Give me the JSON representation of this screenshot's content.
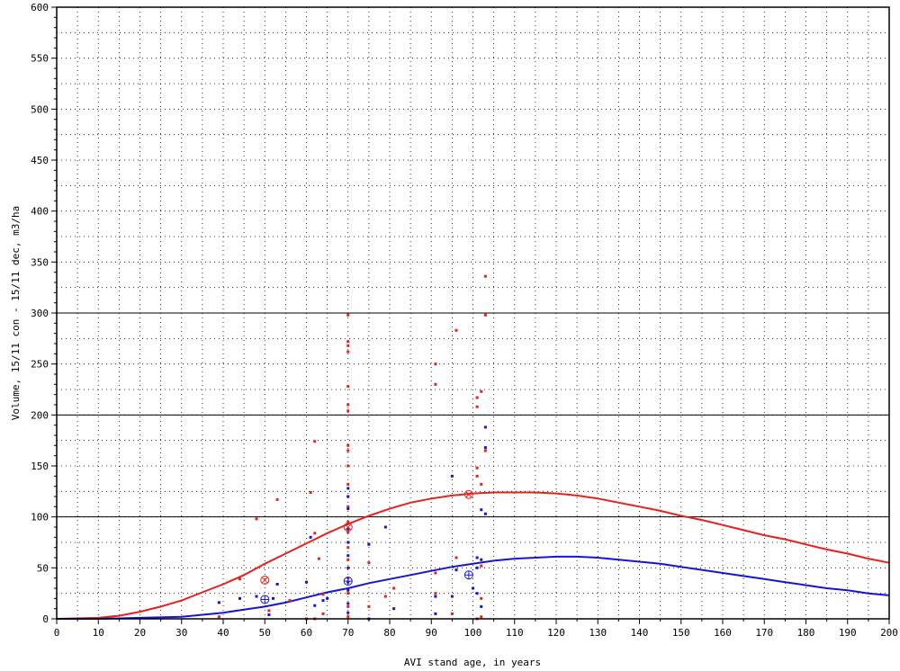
{
  "chart_data": {
    "type": "scatter",
    "title": "",
    "xlabel": "AVI stand age, in years",
    "ylabel": "Volume, 15/11 con - 15/11 dec, m3/ha",
    "xlim": [
      0,
      200
    ],
    "ylim": [
      0,
      600
    ],
    "x_ticks": [
      0,
      10,
      20,
      30,
      40,
      50,
      60,
      70,
      80,
      90,
      100,
      110,
      120,
      130,
      140,
      150,
      160,
      170,
      180,
      190,
      200
    ],
    "y_ticks": [
      0,
      50,
      100,
      150,
      200,
      250,
      300,
      350,
      400,
      450,
      500,
      550,
      600
    ],
    "reference_lines_y": [
      100,
      200,
      300
    ],
    "grid": "dotted",
    "legend": "none",
    "colors": {
      "con": "#e8201e",
      "dec": "#1515d8",
      "axis": "#000000"
    },
    "series": [
      {
        "kind": "points",
        "color": "con",
        "points": [
          [
            39,
            2
          ],
          [
            44,
            39
          ],
          [
            48,
            98
          ],
          [
            51,
            8
          ],
          [
            53,
            117
          ],
          [
            56,
            18
          ],
          [
            60,
            0
          ],
          [
            61,
            124
          ],
          [
            62,
            174
          ],
          [
            62,
            84
          ],
          [
            62,
            0
          ],
          [
            63,
            59
          ],
          [
            64,
            24
          ],
          [
            64,
            5
          ],
          [
            70,
            298
          ],
          [
            70,
            272
          ],
          [
            70,
            268
          ],
          [
            70,
            262
          ],
          [
            70,
            228
          ],
          [
            70,
            210
          ],
          [
            70,
            204
          ],
          [
            70,
            170
          ],
          [
            70,
            165
          ],
          [
            70,
            150
          ],
          [
            70,
            132
          ],
          [
            70,
            110
          ],
          [
            70,
            95
          ],
          [
            70,
            85
          ],
          [
            70,
            70
          ],
          [
            70,
            58
          ],
          [
            70,
            40
          ],
          [
            70,
            25
          ],
          [
            70,
            12
          ],
          [
            70,
            2
          ],
          [
            75,
            55
          ],
          [
            75,
            12
          ],
          [
            79,
            22
          ],
          [
            81,
            30
          ],
          [
            91,
            250
          ],
          [
            91,
            230
          ],
          [
            91,
            45
          ],
          [
            91,
            25
          ],
          [
            96,
            283
          ],
          [
            96,
            60
          ],
          [
            95,
            5
          ],
          [
            101,
            148
          ],
          [
            101,
            140
          ],
          [
            101,
            217
          ],
          [
            101,
            208
          ],
          [
            102,
            223
          ],
          [
            102,
            132
          ],
          [
            102,
            52
          ],
          [
            102,
            20
          ],
          [
            103,
            336
          ],
          [
            103,
            298
          ],
          [
            103,
            165
          ],
          [
            101,
            0
          ],
          [
            102,
            2
          ]
        ]
      },
      {
        "kind": "points",
        "color": "dec",
        "points": [
          [
            39,
            16
          ],
          [
            44,
            20
          ],
          [
            48,
            22
          ],
          [
            51,
            4
          ],
          [
            52,
            20
          ],
          [
            53,
            34
          ],
          [
            60,
            36
          ],
          [
            61,
            80
          ],
          [
            62,
            13
          ],
          [
            64,
            18
          ],
          [
            65,
            20
          ],
          [
            70,
            128
          ],
          [
            70,
            120
          ],
          [
            70,
            108
          ],
          [
            70,
            88
          ],
          [
            70,
            75
          ],
          [
            70,
            62
          ],
          [
            70,
            50
          ],
          [
            70,
            36
          ],
          [
            70,
            28
          ],
          [
            70,
            15
          ],
          [
            70,
            6
          ],
          [
            75,
            73
          ],
          [
            75,
            0
          ],
          [
            79,
            90
          ],
          [
            81,
            10
          ],
          [
            91,
            22
          ],
          [
            91,
            5
          ],
          [
            95,
            140
          ],
          [
            95,
            22
          ],
          [
            96,
            48
          ],
          [
            101,
            60
          ],
          [
            101,
            50
          ],
          [
            102,
            107
          ],
          [
            102,
            58
          ],
          [
            103,
            188
          ],
          [
            103,
            168
          ],
          [
            103,
            103
          ],
          [
            101,
            25
          ],
          [
            102,
            12
          ],
          [
            100,
            30
          ]
        ]
      },
      {
        "kind": "mean-markers",
        "color": "con",
        "marker": "circle-x",
        "points": [
          [
            50,
            38
          ],
          [
            70,
            90
          ],
          [
            99,
            122
          ]
        ]
      },
      {
        "kind": "mean-markers",
        "color": "dec",
        "marker": "circle-plus",
        "points": [
          [
            50,
            19
          ],
          [
            70,
            37
          ],
          [
            99,
            43
          ]
        ]
      },
      {
        "kind": "curve",
        "color": "con",
        "points": [
          [
            0,
            0
          ],
          [
            10,
            1
          ],
          [
            15,
            3
          ],
          [
            20,
            7
          ],
          [
            25,
            12
          ],
          [
            30,
            18
          ],
          [
            35,
            26
          ],
          [
            40,
            34
          ],
          [
            45,
            43
          ],
          [
            50,
            54
          ],
          [
            55,
            64
          ],
          [
            60,
            74
          ],
          [
            65,
            84
          ],
          [
            70,
            93
          ],
          [
            75,
            101
          ],
          [
            80,
            108
          ],
          [
            85,
            114
          ],
          [
            90,
            118
          ],
          [
            95,
            121
          ],
          [
            100,
            123
          ],
          [
            105,
            124
          ],
          [
            110,
            124
          ],
          [
            115,
            124
          ],
          [
            120,
            123
          ],
          [
            125,
            121
          ],
          [
            130,
            118
          ],
          [
            135,
            114
          ],
          [
            140,
            110
          ],
          [
            145,
            106
          ],
          [
            150,
            101
          ],
          [
            155,
            97
          ],
          [
            160,
            92
          ],
          [
            165,
            87
          ],
          [
            170,
            82
          ],
          [
            175,
            78
          ],
          [
            180,
            73
          ],
          [
            185,
            68
          ],
          [
            190,
            64
          ],
          [
            195,
            59
          ],
          [
            200,
            55
          ]
        ]
      },
      {
        "kind": "curve",
        "color": "dec",
        "points": [
          [
            0,
            0
          ],
          [
            10,
            0
          ],
          [
            20,
            1
          ],
          [
            30,
            2
          ],
          [
            40,
            6
          ],
          [
            45,
            9
          ],
          [
            50,
            12
          ],
          [
            55,
            16
          ],
          [
            60,
            21
          ],
          [
            65,
            26
          ],
          [
            70,
            30
          ],
          [
            75,
            35
          ],
          [
            80,
            39
          ],
          [
            85,
            43
          ],
          [
            90,
            47
          ],
          [
            95,
            51
          ],
          [
            100,
            54
          ],
          [
            105,
            57
          ],
          [
            110,
            59
          ],
          [
            115,
            60
          ],
          [
            120,
            61
          ],
          [
            125,
            61
          ],
          [
            130,
            60
          ],
          [
            135,
            58
          ],
          [
            140,
            56
          ],
          [
            145,
            54
          ],
          [
            150,
            51
          ],
          [
            155,
            48
          ],
          [
            160,
            45
          ],
          [
            165,
            42
          ],
          [
            170,
            39
          ],
          [
            175,
            36
          ],
          [
            180,
            33
          ],
          [
            185,
            30
          ],
          [
            190,
            28
          ],
          [
            195,
            25
          ],
          [
            200,
            23
          ]
        ]
      }
    ]
  }
}
